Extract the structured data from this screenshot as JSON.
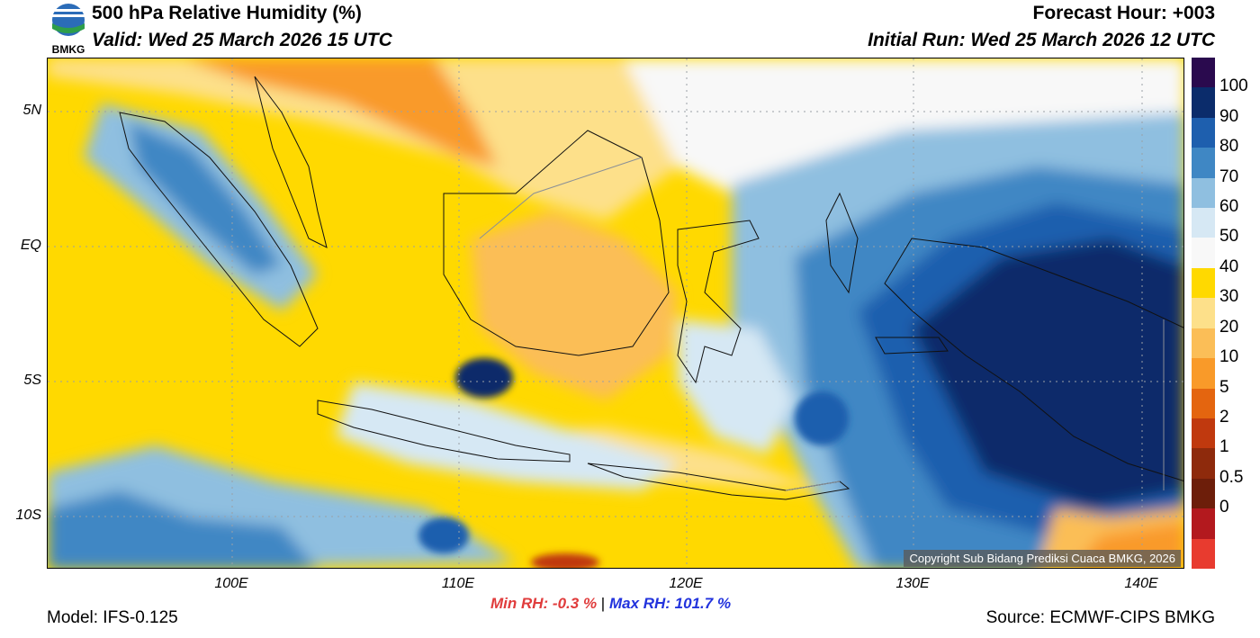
{
  "header": {
    "title": "500 hPa Relative Humidity (%)",
    "valid": "Valid: Wed 25 March 2026 15 UTC",
    "forecast_hour": "Forecast Hour: +003",
    "initial_run": "Initial Run: Wed 25 March 2026 12 UTC",
    "logo_text": "BMKG"
  },
  "map": {
    "lat_labels": [
      "5N",
      "EQ",
      "5S",
      "10S"
    ],
    "lon_labels": [
      "100E",
      "110E",
      "120E",
      "130E",
      "140E"
    ],
    "copyright": "Copyright Sub Bidang Prediksi Cuaca BMKG, 2026"
  },
  "colorbar": {
    "labels": [
      "100",
      "90",
      "80",
      "70",
      "60",
      "50",
      "40",
      "30",
      "20",
      "10",
      "5",
      "2",
      "1",
      "0.5",
      "0"
    ],
    "colors": [
      "#2a0a4e",
      "#0b2c6b",
      "#1e5fae",
      "#3f87c4",
      "#8fbfe0",
      "#d6e8f4",
      "#f8f8f8",
      "#ffd900",
      "#fde08a",
      "#fbbe57",
      "#f99a29",
      "#e4650f",
      "#c0390e",
      "#8e2a0c",
      "#6d1e0a",
      "#b3191e",
      "#e83b2f"
    ]
  },
  "footer": {
    "model": "Model: IFS-0.125",
    "min_rh": "Min RH:  -0.3 %",
    "separator": "|",
    "max_rh": "Max RH: 101.7 %",
    "source": "Source: ECMWF-CIPS BMKG"
  },
  "style": {
    "min_color": "#e03c3c",
    "max_color": "#2233dd"
  }
}
